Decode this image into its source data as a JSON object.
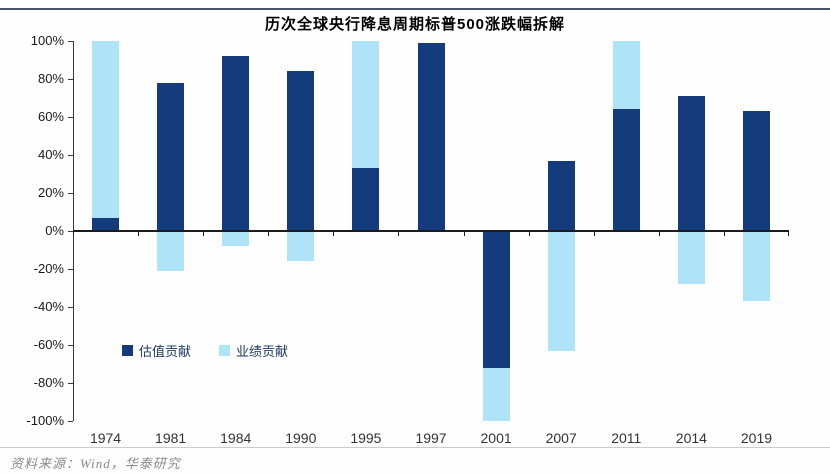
{
  "header": {
    "title": "历次全球央行降息周期标普500涨跌幅拆解"
  },
  "chart_data": {
    "type": "bar",
    "stacked": true,
    "title": "历次全球央行降息周期标普500涨跌幅拆解",
    "categories": [
      "1974",
      "1981",
      "1984",
      "1990",
      "1995",
      "1997",
      "2001",
      "2007",
      "2011",
      "2014",
      "2019"
    ],
    "series": [
      {
        "name": "估值贡献",
        "color": "#143c7c",
        "values": [
          7,
          78,
          92,
          84,
          33,
          99,
          -72,
          37,
          64,
          71,
          63
        ]
      },
      {
        "name": "业绩贡献",
        "color": "#aee3f8",
        "values": [
          93,
          -21,
          -8,
          -16,
          67,
          0,
          -28,
          -63,
          36,
          -28,
          -37
        ]
      }
    ],
    "ylim": [
      -100,
      100
    ],
    "ytick_step": 20,
    "yticks": [
      "100%",
      "80%",
      "60%",
      "40%",
      "20%",
      "0%",
      "-20%",
      "-40%",
      "-60%",
      "-80%",
      "-100%"
    ],
    "ytick_format": "percent",
    "grid": false,
    "legend_position": "inside-bottom-left"
  },
  "footer": {
    "source": "资料来源：Wind，华泰研究"
  }
}
